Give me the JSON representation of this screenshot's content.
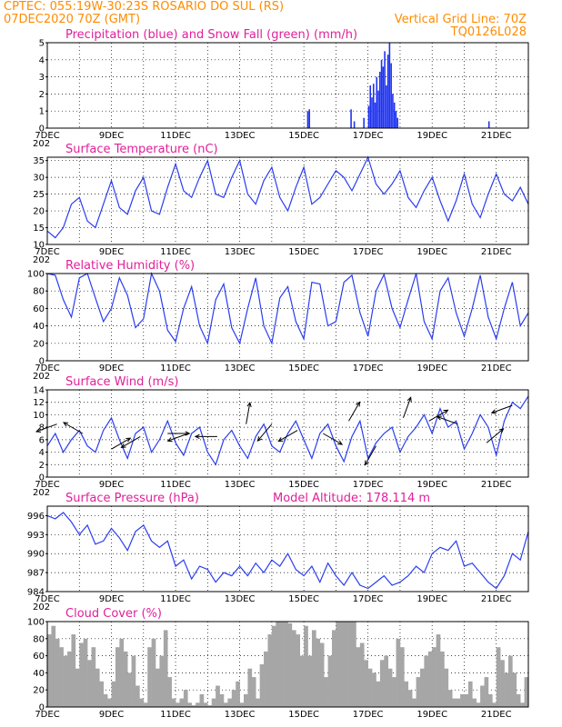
{
  "header": {
    "line1": "CPTEC:   055:19W-30:23S   ROSARIO DO SUL (RS)",
    "line2_left": "07DEC2020 70Z (GMT)",
    "line2_right": "Vertical Grid Line: 70Z",
    "line3_right": "TQ0126L028"
  },
  "x_axis": {
    "labels": [
      "7DEC",
      "9DEC",
      "11DEC",
      "13DEC",
      "15DEC",
      "17DEC",
      "19DEC",
      "21DEC"
    ],
    "label_days": [
      0,
      2,
      4,
      6,
      8,
      10,
      12,
      14
    ],
    "stub": "202",
    "days_span": 15
  },
  "colors": {
    "precip": "#1e32f0",
    "snow": "#00b000",
    "line": "#2a3df0",
    "cloud": "#a6a6a6",
    "title": "#e0209a",
    "header": "#ff8c00",
    "arrow": "#000000"
  },
  "panels": [
    {
      "id": "precip",
      "title": "Precipitation (blue) and Snow Fall (green) (mm/h)",
      "yticks": [
        "0",
        "1",
        "2",
        "3",
        "4",
        "5"
      ],
      "ytick_values": [
        0,
        1,
        2,
        3,
        4,
        5
      ],
      "ylim": [
        0,
        5
      ]
    },
    {
      "id": "temp",
      "title": "Surface Temperature (nC)",
      "yticks": [
        "10",
        "15",
        "20",
        "25",
        "30",
        "35"
      ],
      "ytick_values": [
        10,
        15,
        20,
        25,
        30,
        35
      ],
      "ylim": [
        10,
        36
      ]
    },
    {
      "id": "rh",
      "title": "Relative Humidity (%)",
      "yticks": [
        "0",
        "20",
        "40",
        "60",
        "80",
        "100"
      ],
      "ytick_values": [
        0,
        20,
        40,
        60,
        80,
        100
      ],
      "ylim": [
        0,
        100
      ]
    },
    {
      "id": "wind",
      "title": "Surface Wind (m/s)",
      "yticks": [
        "0",
        "2",
        "4",
        "6",
        "8",
        "10",
        "12",
        "14"
      ],
      "ytick_values": [
        0,
        2,
        4,
        6,
        8,
        10,
        12,
        14
      ],
      "ylim": [
        0,
        14
      ]
    },
    {
      "id": "pressure",
      "title": "Surface Pressure (hPa)",
      "title_right": "Model Altitude: 178.114 m",
      "yticks": [
        "984",
        "987",
        "990",
        "993",
        "996"
      ],
      "ytick_values": [
        984,
        987,
        990,
        993,
        996
      ],
      "ylim": [
        984,
        997.5
      ]
    },
    {
      "id": "cloud",
      "title": "Cloud Cover (%)",
      "yticks": [
        "0",
        "20",
        "40",
        "60",
        "80",
        "100"
      ],
      "ytick_values": [
        0,
        20,
        40,
        60,
        80,
        100
      ],
      "ylim": [
        0,
        100
      ]
    }
  ],
  "chart_data": [
    {
      "type": "bar",
      "title": "Precipitation (blue) and Snow Fall (green) (mm/h)",
      "x_unit": "days since 07DEC2020 00Z",
      "ylim": [
        0,
        5
      ],
      "series": [
        {
          "name": "Precipitation",
          "x": [
            8.1,
            8.15,
            9.45,
            9.55,
            9.85,
            10.0,
            10.05,
            10.1,
            10.15,
            10.2,
            10.25,
            10.3,
            10.35,
            10.4,
            10.45,
            10.5,
            10.55,
            10.6,
            10.65,
            10.7,
            10.75,
            10.8,
            10.85,
            10.9,
            13.75
          ],
          "values": [
            1.0,
            1.1,
            1.1,
            0.4,
            0.6,
            1.3,
            2.5,
            1.8,
            2.6,
            1.5,
            3.0,
            2.2,
            3.3,
            4.0,
            3.6,
            4.5,
            2.5,
            4.3,
            5.0,
            3.8,
            2.0,
            1.5,
            1.0,
            0.6,
            0.4
          ]
        },
        {
          "name": "Snow Fall",
          "x": [],
          "values": []
        }
      ]
    },
    {
      "type": "line",
      "title": "Surface Temperature (nC)",
      "x_unit": "days since 07DEC2020 00Z",
      "ylim": [
        10,
        36
      ],
      "x": [
        0.0,
        0.25,
        0.5,
        0.75,
        1.0,
        1.25,
        1.5,
        1.75,
        2.0,
        2.25,
        2.5,
        2.75,
        3.0,
        3.25,
        3.5,
        3.75,
        4.0,
        4.25,
        4.5,
        4.75,
        5.0,
        5.25,
        5.5,
        5.75,
        6.0,
        6.25,
        6.5,
        6.75,
        7.0,
        7.25,
        7.5,
        7.75,
        8.0,
        8.25,
        8.5,
        8.75,
        9.0,
        9.25,
        9.5,
        9.75,
        10.0,
        10.25,
        10.5,
        10.75,
        11.0,
        11.25,
        11.5,
        11.75,
        12.0,
        12.25,
        12.5,
        12.75,
        13.0,
        13.25,
        13.5,
        13.75,
        14.0,
        14.25,
        14.5,
        14.75,
        15.0
      ],
      "values": [
        14.0,
        12.0,
        15.0,
        22.0,
        24.0,
        17.0,
        15.0,
        22.0,
        29.0,
        21.0,
        19.0,
        26.0,
        30.0,
        20.0,
        19.0,
        27.0,
        34.0,
        26.0,
        24.0,
        30.0,
        35.0,
        25.0,
        24.0,
        30.0,
        35.0,
        25.0,
        22.0,
        29.0,
        33.0,
        24.0,
        20.0,
        27.0,
        33.0,
        22.0,
        24.0,
        28.0,
        32.0,
        30.0,
        26.0,
        31.0,
        36.0,
        28.0,
        25.0,
        28.0,
        32.0,
        24.0,
        21.0,
        26.0,
        30.0,
        23.0,
        17.0,
        23.0,
        31.0,
        22.0,
        18.0,
        25.0,
        31.0,
        25.0,
        23.0,
        27.0,
        22.0
      ]
    },
    {
      "type": "line",
      "title": "Relative Humidity (%)",
      "x_unit": "days since 07DEC2020 00Z",
      "ylim": [
        0,
        100
      ],
      "x": [
        0.0,
        0.25,
        0.5,
        0.75,
        1.0,
        1.25,
        1.5,
        1.75,
        2.0,
        2.25,
        2.5,
        2.75,
        3.0,
        3.25,
        3.5,
        3.75,
        4.0,
        4.25,
        4.5,
        4.75,
        5.0,
        5.25,
        5.5,
        5.75,
        6.0,
        6.25,
        6.5,
        6.75,
        7.0,
        7.25,
        7.5,
        7.75,
        8.0,
        8.25,
        8.5,
        8.75,
        9.0,
        9.25,
        9.5,
        9.75,
        10.0,
        10.25,
        10.5,
        10.75,
        11.0,
        11.25,
        11.5,
        11.75,
        12.0,
        12.25,
        12.5,
        12.75,
        13.0,
        13.25,
        13.5,
        13.75,
        14.0,
        14.25,
        14.5,
        14.75,
        15.0
      ],
      "values": [
        100.0,
        98.0,
        70.0,
        50.0,
        95.0,
        100.0,
        72.0,
        45.0,
        60.0,
        95.0,
        75.0,
        38.0,
        48.0,
        100.0,
        80.0,
        35.0,
        22.0,
        60.0,
        85.0,
        40.0,
        20.0,
        70.0,
        88.0,
        38.0,
        20.0,
        60.0,
        95.0,
        40.0,
        20.0,
        72.0,
        85.0,
        45.0,
        25.0,
        90.0,
        88.0,
        40.0,
        45.0,
        90.0,
        98.0,
        55.0,
        28.0,
        80.0,
        99.0,
        60.0,
        38.0,
        70.0,
        100.0,
        45.0,
        25.0,
        80.0,
        95.0,
        55.0,
        28.0,
        60.0,
        98.0,
        50.0,
        25.0,
        60.0,
        90.0,
        40.0,
        55.0
      ]
    },
    {
      "type": "line",
      "title": "Surface Wind (m/s)",
      "x_unit": "days since 07DEC2020 00Z",
      "ylim": [
        0,
        14
      ],
      "x": [
        0.0,
        0.25,
        0.5,
        0.75,
        1.0,
        1.25,
        1.5,
        1.75,
        2.0,
        2.25,
        2.5,
        2.75,
        3.0,
        3.25,
        3.5,
        3.75,
        4.0,
        4.25,
        4.5,
        4.75,
        5.0,
        5.25,
        5.5,
        5.75,
        6.0,
        6.25,
        6.5,
        6.75,
        7.0,
        7.25,
        7.5,
        7.75,
        8.0,
        8.25,
        8.5,
        8.75,
        9.0,
        9.25,
        9.5,
        9.75,
        10.0,
        10.25,
        10.5,
        10.75,
        11.0,
        11.25,
        11.5,
        11.75,
        12.0,
        12.25,
        12.5,
        12.75,
        13.0,
        13.25,
        13.5,
        13.75,
        14.0,
        14.25,
        14.5,
        14.75,
        15.0
      ],
      "values": [
        5.0,
        7.0,
        4.0,
        6.0,
        7.5,
        5.0,
        4.0,
        7.5,
        9.5,
        6.0,
        3.0,
        7.0,
        8.0,
        4.0,
        6.0,
        9.0,
        5.5,
        3.5,
        7.0,
        8.0,
        4.0,
        2.0,
        6.0,
        7.5,
        5.0,
        3.0,
        6.5,
        8.5,
        5.0,
        4.0,
        7.0,
        9.0,
        6.0,
        3.0,
        7.0,
        8.5,
        5.0,
        2.5,
        6.5,
        9.0,
        3.0,
        5.5,
        7.0,
        8.0,
        4.0,
        6.5,
        8.0,
        10.0,
        7.0,
        11.0,
        8.0,
        9.0,
        4.5,
        7.0,
        10.0,
        8.0,
        3.5,
        9.0,
        12.0,
        11.0,
        13.0
      ]
    },
    {
      "type": "line",
      "title": "Surface Pressure (hPa)",
      "x_unit": "days since 07DEC2020 00Z",
      "ylim": [
        984,
        997.5
      ],
      "x": [
        0.0,
        0.25,
        0.5,
        0.75,
        1.0,
        1.25,
        1.5,
        1.75,
        2.0,
        2.25,
        2.5,
        2.75,
        3.0,
        3.25,
        3.5,
        3.75,
        4.0,
        4.25,
        4.5,
        4.75,
        5.0,
        5.25,
        5.5,
        5.75,
        6.0,
        6.25,
        6.5,
        6.75,
        7.0,
        7.25,
        7.5,
        7.75,
        8.0,
        8.25,
        8.5,
        8.75,
        9.0,
        9.25,
        9.5,
        9.75,
        10.0,
        10.25,
        10.5,
        10.75,
        11.0,
        11.25,
        11.5,
        11.75,
        12.0,
        12.25,
        12.5,
        12.75,
        13.0,
        13.25,
        13.5,
        13.75,
        14.0,
        14.25,
        14.5,
        14.75,
        15.0
      ],
      "values": [
        996.0,
        995.5,
        996.5,
        995.0,
        993.0,
        994.5,
        991.5,
        992.0,
        994.0,
        992.5,
        990.5,
        993.5,
        994.5,
        992.0,
        991.0,
        992.0,
        988.0,
        989.0,
        986.0,
        988.0,
        987.5,
        985.5,
        987.0,
        986.5,
        988.0,
        986.5,
        988.5,
        987.0,
        989.0,
        988.0,
        990.0,
        987.5,
        986.5,
        988.0,
        985.5,
        988.5,
        986.5,
        985.0,
        987.0,
        985.0,
        984.5,
        985.5,
        986.5,
        985.0,
        985.5,
        986.5,
        988.0,
        987.0,
        990.0,
        991.0,
        990.5,
        992.0,
        988.0,
        988.5,
        987.0,
        985.5,
        984.5,
        986.5,
        990.0,
        989.0,
        993.5
      ]
    },
    {
      "type": "bar",
      "title": "Cloud Cover (%)",
      "x_unit": "days since 07DEC2020 00Z",
      "ylim": [
        0,
        100
      ],
      "x": [
        0.0,
        0.125,
        0.25,
        0.375,
        0.5,
        0.625,
        0.75,
        0.875,
        1.0,
        1.125,
        1.25,
        1.375,
        1.5,
        1.625,
        1.75,
        1.875,
        2.0,
        2.125,
        2.25,
        2.375,
        2.5,
        2.625,
        2.75,
        2.875,
        3.0,
        3.125,
        3.25,
        3.375,
        3.5,
        3.625,
        3.75,
        3.875,
        4.0,
        4.125,
        4.25,
        4.375,
        4.5,
        4.625,
        4.75,
        4.875,
        5.0,
        5.125,
        5.25,
        5.375,
        5.5,
        5.625,
        5.75,
        5.875,
        6.0,
        6.125,
        6.25,
        6.375,
        6.5,
        6.625,
        6.75,
        6.875,
        7.0,
        7.125,
        7.25,
        7.375,
        7.5,
        7.625,
        7.75,
        7.875,
        8.0,
        8.125,
        8.25,
        8.375,
        8.5,
        8.625,
        8.75,
        8.875,
        9.0,
        9.125,
        9.25,
        9.375,
        9.5,
        9.625,
        9.75,
        9.875,
        10.0,
        10.125,
        10.25,
        10.375,
        10.5,
        10.625,
        10.75,
        10.875,
        11.0,
        11.125,
        11.25,
        11.375,
        11.5,
        11.625,
        11.75,
        11.875,
        12.0,
        12.125,
        12.25,
        12.375,
        12.5,
        12.625,
        12.75,
        12.875,
        13.0,
        13.125,
        13.25,
        13.375,
        13.5,
        13.625,
        13.75,
        13.875,
        14.0,
        14.125,
        14.25,
        14.375,
        14.5,
        14.625,
        14.75,
        14.875
      ],
      "values": [
        85.0,
        95.0,
        80.0,
        70.0,
        60.0,
        65.0,
        85.0,
        45.0,
        75.0,
        80.0,
        55.0,
        70.0,
        45.0,
        30.0,
        15.0,
        10.0,
        30.0,
        70.0,
        80.0,
        65.0,
        40.0,
        60.0,
        25.0,
        10.0,
        5.0,
        70.0,
        80.0,
        45.0,
        60.0,
        90.0,
        35.0,
        10.0,
        5.0,
        10.0,
        20.0,
        5.0,
        2.0,
        5.0,
        15.0,
        5.0,
        2.0,
        10.0,
        25.0,
        15.0,
        5.0,
        10.0,
        20.0,
        30.0,
        5.0,
        15.0,
        45.0,
        35.0,
        10.0,
        50.0,
        65.0,
        85.0,
        95.0,
        100.0,
        100.0,
        100.0,
        98.0,
        90.0,
        85.0,
        60.0,
        95.0,
        60.0,
        90.0,
        80.0,
        75.0,
        35.0,
        60.0,
        90.0,
        100.0,
        100.0,
        100.0,
        100.0,
        100.0,
        70.0,
        75.0,
        55.0,
        45.0,
        40.0,
        30.0,
        55.0,
        60.0,
        45.0,
        35.0,
        80.0,
        70.0,
        30.0,
        20.0,
        10.0,
        35.0,
        45.0,
        60.0,
        65.0,
        70.0,
        85.0,
        65.0,
        45.0,
        20.0,
        10.0,
        10.0,
        15.0,
        15.0,
        30.0,
        10.0,
        5.0,
        25.0,
        35.0,
        15.0,
        5.0,
        70.0,
        55.0,
        40.0,
        60.0,
        40.0,
        15.0,
        5.0,
        35.0
      ]
    },
    {
      "type": "vector",
      "title": "Surface Wind (m/s) direction arrows",
      "x_unit": "days since 07DEC2020 00Z",
      "x": [
        0.3,
        1.1,
        2.0,
        2.9,
        3.75,
        4.4,
        5.3,
        6.2,
        7.0,
        7.8,
        8.6,
        9.4,
        10.25,
        11.1,
        11.9,
        12.8,
        13.7,
        14.5
      ],
      "speed": [
        8.5,
        7.0,
        4.5,
        6.5,
        7.0,
        7.0,
        6.5,
        8.5,
        8.5,
        7.5,
        7.0,
        9.0,
        5.0,
        9.5,
        9.0,
        8.5,
        5.5,
        11.5
      ],
      "angle_deg": [
        200,
        150,
        30,
        210,
        0,
        200,
        180,
        80,
        230,
        210,
        330,
        60,
        240,
        70,
        30,
        160,
        40,
        200
      ]
    }
  ]
}
